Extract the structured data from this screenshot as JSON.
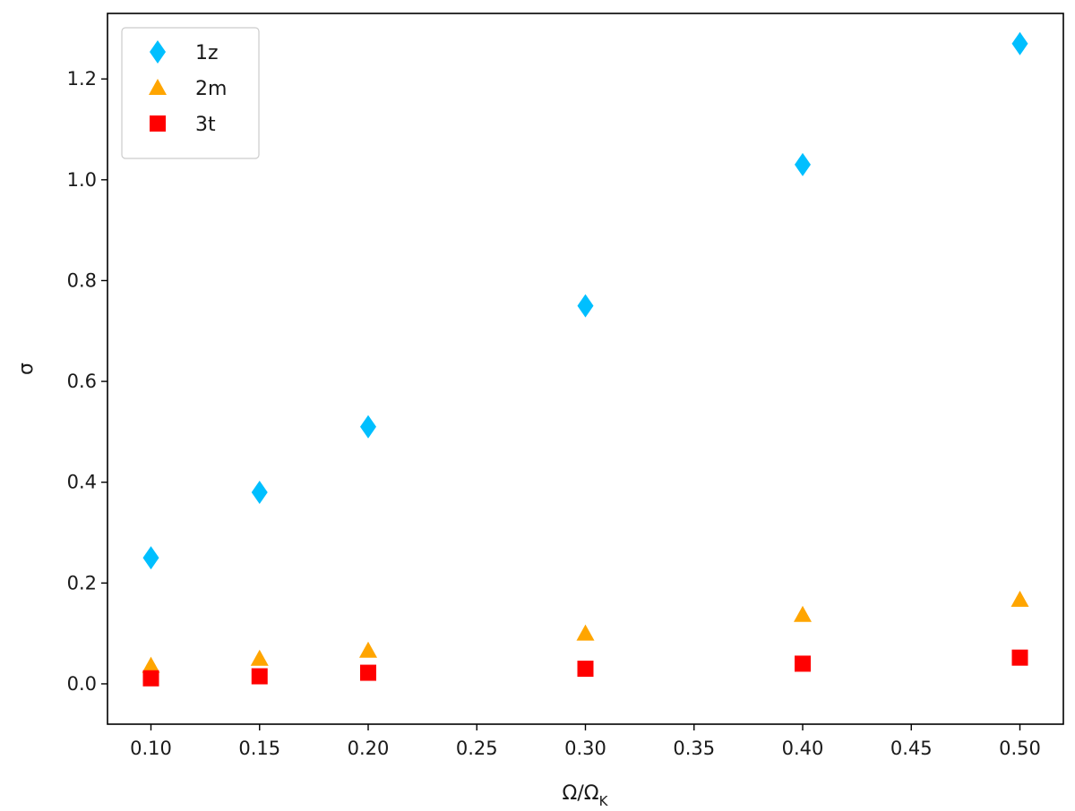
{
  "chart_data": {
    "type": "scatter",
    "xlabel": "Ω/Ω",
    "xlabel_sub": "K",
    "ylabel": "σ",
    "xlim": [
      0.08,
      0.52
    ],
    "ylim": [
      -0.08,
      1.33
    ],
    "xticks": [
      0.1,
      0.15,
      0.2,
      0.25,
      0.3,
      0.35,
      0.4,
      0.45,
      0.5
    ],
    "xtick_labels": [
      "0.10",
      "0.15",
      "0.20",
      "0.25",
      "0.30",
      "0.35",
      "0.40",
      "0.45",
      "0.50"
    ],
    "yticks": [
      0.0,
      0.2,
      0.4,
      0.6,
      0.8,
      1.0,
      1.2
    ],
    "ytick_labels": [
      "0.0",
      "0.2",
      "0.4",
      "0.6",
      "0.8",
      "1.0",
      "1.2"
    ],
    "grid": false,
    "legend_position": "top-left",
    "series": [
      {
        "name": "1z",
        "marker": "diamond",
        "color": "#00bfff",
        "x": [
          0.1,
          0.15,
          0.2,
          0.3,
          0.4,
          0.5
        ],
        "y": [
          0.25,
          0.38,
          0.51,
          0.75,
          1.03,
          1.27
        ]
      },
      {
        "name": "2m",
        "marker": "triangle",
        "color": "#ffa500",
        "x": [
          0.1,
          0.15,
          0.2,
          0.3,
          0.4,
          0.5
        ],
        "y": [
          0.036,
          0.05,
          0.066,
          0.1,
          0.137,
          0.167
        ]
      },
      {
        "name": "3t",
        "marker": "square",
        "color": "#ff0000",
        "x": [
          0.1,
          0.15,
          0.2,
          0.3,
          0.4,
          0.5
        ],
        "y": [
          0.011,
          0.015,
          0.022,
          0.03,
          0.04,
          0.052
        ]
      }
    ]
  }
}
